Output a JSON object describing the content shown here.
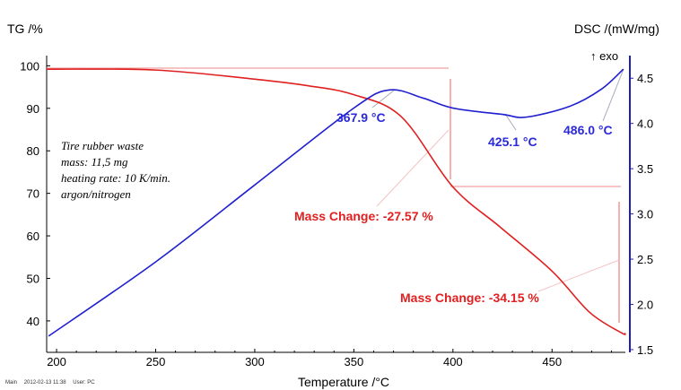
{
  "chart_data": {
    "type": "line",
    "xlabel": "Temperature /°C",
    "ylabel_left": "TG /%",
    "ylabel_right": "DSC /(mW/mg)",
    "exo_label": "↑ exo",
    "xlim": [
      195,
      487
    ],
    "ylim_left": [
      32.6,
      102.4
    ],
    "ylim_right": [
      1.47,
      4.75
    ],
    "xticks": [
      200,
      250,
      300,
      350,
      400,
      450
    ],
    "yticks_left": [
      40,
      50,
      60,
      70,
      80,
      90,
      100
    ],
    "yticks_right": [
      1.5,
      2.0,
      2.5,
      3.0,
      3.5,
      4.0,
      4.5
    ],
    "yticks_right_labels": [
      "1.5",
      "2.0",
      "2.5",
      "3.0",
      "3.5",
      "4.0",
      "4.5"
    ],
    "series": [
      {
        "name": "TG",
        "axis": "left",
        "color": "#e02020",
        "x": [
          195,
          250,
          301,
          327,
          350,
          374,
          400,
          424,
          450,
          469,
          485,
          487
        ],
        "y": [
          99.2,
          99.0,
          96.8,
          95.3,
          93.2,
          88,
          71.5,
          62,
          51.7,
          42,
          37.2,
          37.1
        ]
      },
      {
        "name": "DSC",
        "axis": "right",
        "color": "#2020d0",
        "x": [
          196,
          250,
          300,
          350,
          368,
          385,
          400,
          425,
          437,
          459,
          475,
          486
        ],
        "y": [
          1.65,
          2.47,
          3.32,
          4.17,
          4.37,
          4.28,
          4.17,
          4.1,
          4.07,
          4.19,
          4.38,
          4.6
        ]
      }
    ],
    "annotations": {
      "peak1": "367.9 °C",
      "peak2": "425.1 °C",
      "peak3": "486.0 °C",
      "mass1": "Mass Change: -27.57 %",
      "mass2": "Mass Change: -34.15 %"
    },
    "sample_info": [
      "Tire rubber waste",
      "mass: 11,5 mg",
      "heating rate: 10 K/min.",
      "argon/nitrogen"
    ]
  },
  "footer": {
    "main": "Main",
    "datetime": "2012-02-13 11:38",
    "user": "User: PC"
  }
}
